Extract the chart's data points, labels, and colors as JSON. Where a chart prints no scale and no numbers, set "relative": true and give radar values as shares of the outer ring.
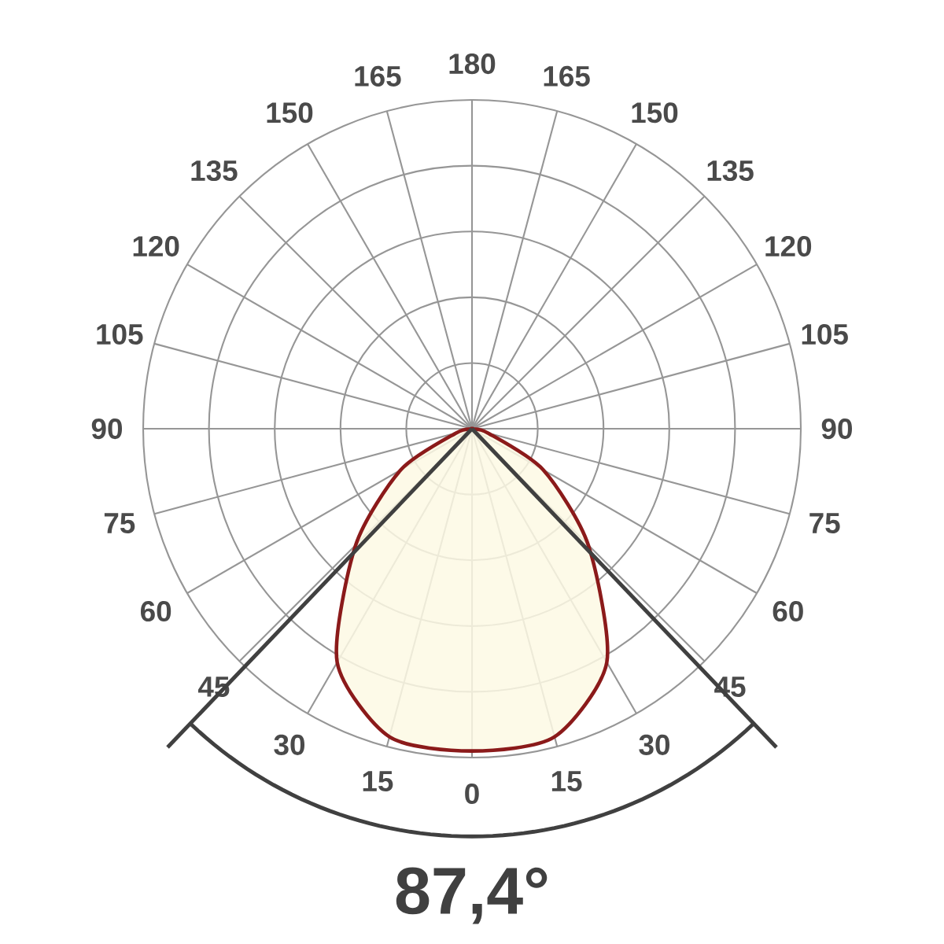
{
  "chart_data": {
    "type": "radar",
    "relative": true,
    "grid": true,
    "categories": [
      "180",
      "165",
      "150",
      "135",
      "120",
      "105",
      "90",
      "75",
      "60",
      "45",
      "30",
      "15",
      "0",
      "15",
      "30",
      "45",
      "60",
      "75",
      "90",
      "105",
      "120",
      "135",
      "150",
      "165"
    ],
    "series": [
      {
        "color": "#8b1a1a",
        "values": [
          0,
          0,
          0,
          0,
          0,
          0,
          0,
          0.05,
          0.25,
          0.5,
          0.82,
          0.97,
          0.98,
          0.97,
          0.82,
          0.5,
          0.25,
          0.05,
          0,
          0,
          0,
          0,
          0,
          0
        ]
      }
    ],
    "annotations": [
      "87,4°"
    ]
  }
}
